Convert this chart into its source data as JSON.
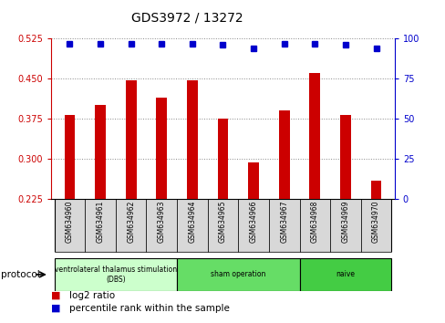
{
  "title": "GDS3972 / 13272",
  "samples": [
    "GSM634960",
    "GSM634961",
    "GSM634962",
    "GSM634963",
    "GSM634964",
    "GSM634965",
    "GSM634966",
    "GSM634967",
    "GSM634968",
    "GSM634969",
    "GSM634970"
  ],
  "log2_ratio": [
    0.382,
    0.4,
    0.447,
    0.415,
    0.447,
    0.375,
    0.293,
    0.39,
    0.46,
    0.382,
    0.258
  ],
  "percentile_rank": [
    97,
    97,
    97,
    97,
    97,
    96,
    94,
    97,
    97,
    96,
    94
  ],
  "ylim_left": [
    0.225,
    0.525
  ],
  "ylim_right": [
    0,
    100
  ],
  "yticks_left": [
    0.225,
    0.3,
    0.375,
    0.45,
    0.525
  ],
  "yticks_right": [
    0,
    25,
    50,
    75,
    100
  ],
  "bar_color": "#cc0000",
  "dot_color": "#0000cc",
  "groups": [
    {
      "label": "ventrolateral thalamus stimulation\n(DBS)",
      "start": 0,
      "end": 3,
      "color": "#ccffcc"
    },
    {
      "label": "sham operation",
      "start": 4,
      "end": 7,
      "color": "#66dd66"
    },
    {
      "label": "naive",
      "start": 8,
      "end": 10,
      "color": "#44cc44"
    }
  ],
  "protocol_label": "protocol",
  "legend_bar_label": "log2 ratio",
  "legend_dot_label": "percentile rank within the sample",
  "grid_color": "#888888",
  "left_axis_color": "#cc0000",
  "right_axis_color": "#0000cc",
  "background_color": "#ffffff",
  "sample_box_color": "#d8d8d8",
  "title_fontsize": 10,
  "bar_width": 0.35
}
